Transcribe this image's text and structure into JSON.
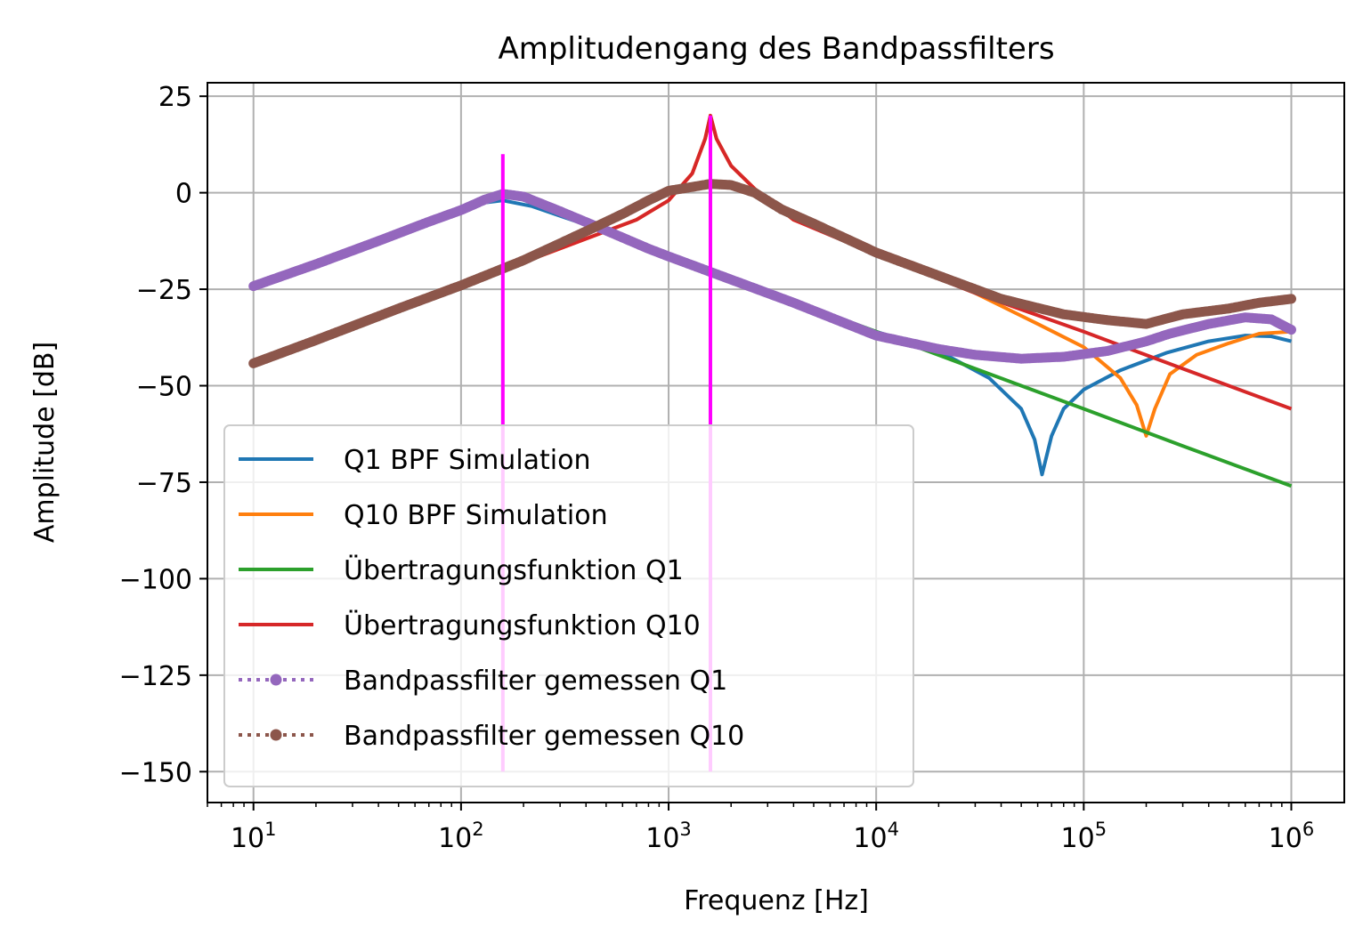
{
  "chart_data": {
    "type": "line",
    "title": "Amplitudengang des Bandpassfilters",
    "xlabel": "Frequenz [Hz]",
    "ylabel": "Amplitude [dB]",
    "x_scale": "log",
    "xlim": [
      6,
      1800000
    ],
    "ylim": [
      -158,
      28.5
    ],
    "grid": true,
    "legend_position": "lower-left",
    "x_ticks": [
      {
        "value": 10,
        "base": "10",
        "exp": "1"
      },
      {
        "value": 100,
        "base": "10",
        "exp": "2"
      },
      {
        "value": 1000,
        "base": "10",
        "exp": "3"
      },
      {
        "value": 10000,
        "base": "10",
        "exp": "4"
      },
      {
        "value": 100000,
        "base": "10",
        "exp": "5"
      },
      {
        "value": 1000000,
        "base": "10",
        "exp": "6"
      }
    ],
    "y_ticks": [
      {
        "value": 25,
        "label": "25"
      },
      {
        "value": 0,
        "label": "0"
      },
      {
        "value": -25,
        "label": "−25"
      },
      {
        "value": -50,
        "label": "−50"
      },
      {
        "value": -75,
        "label": "−75"
      },
      {
        "value": -100,
        "label": "−100"
      },
      {
        "value": -125,
        "label": "−125"
      },
      {
        "value": -150,
        "label": "−150"
      }
    ],
    "vertical_markers": [
      {
        "x": 159,
        "y_range": [
          -150,
          10
        ],
        "color": "#ff00ff"
      },
      {
        "x": 1590,
        "y_range": [
          -150,
          20
        ],
        "color": "#ff00ff"
      }
    ],
    "series": [
      {
        "name": "Q1 BPF Simulation",
        "color": "#1f77b4",
        "style": "solid",
        "points": [
          [
            10,
            -24
          ],
          [
            30,
            -14.5
          ],
          [
            80,
            -6
          ],
          [
            120,
            -2.8
          ],
          [
            159,
            -2
          ],
          [
            220,
            -3.5
          ],
          [
            400,
            -8.3
          ],
          [
            1000,
            -16.2
          ],
          [
            3000,
            -26
          ],
          [
            10000,
            -36
          ],
          [
            20000,
            -41
          ],
          [
            35000,
            -48
          ],
          [
            50000,
            -56
          ],
          [
            58000,
            -64
          ],
          [
            63000,
            -73
          ],
          [
            70000,
            -63
          ],
          [
            80000,
            -56
          ],
          [
            100000,
            -51
          ],
          [
            150000,
            -46
          ],
          [
            250000,
            -41.5
          ],
          [
            400000,
            -38.5
          ],
          [
            600000,
            -37
          ],
          [
            800000,
            -37.2
          ],
          [
            1000000,
            -38.5
          ]
        ]
      },
      {
        "name": "Q10 BPF Simulation",
        "color": "#ff7f0e",
        "style": "solid",
        "points": [
          [
            10,
            -44
          ],
          [
            50,
            -30
          ],
          [
            200,
            -18
          ],
          [
            700,
            -7
          ],
          [
            1000,
            -2
          ],
          [
            1300,
            5
          ],
          [
            1500,
            14
          ],
          [
            1590,
            20
          ],
          [
            1700,
            14
          ],
          [
            2000,
            7
          ],
          [
            2600,
            1
          ],
          [
            4000,
            -7
          ],
          [
            10000,
            -15.5
          ],
          [
            30000,
            -26
          ],
          [
            60000,
            -34
          ],
          [
            100000,
            -40
          ],
          [
            150000,
            -48
          ],
          [
            180000,
            -55
          ],
          [
            200000,
            -63
          ],
          [
            220000,
            -56
          ],
          [
            260000,
            -47
          ],
          [
            350000,
            -42
          ],
          [
            500000,
            -39
          ],
          [
            700000,
            -36.5
          ],
          [
            1000000,
            -36
          ]
        ]
      },
      {
        "name": "Übertragungsfunktion Q1",
        "color": "#2ca02c",
        "style": "solid",
        "points": [
          [
            10,
            -24
          ],
          [
            30,
            -14.5
          ],
          [
            80,
            -6
          ],
          [
            120,
            -2.5
          ],
          [
            159,
            0
          ],
          [
            220,
            -2.5
          ],
          [
            400,
            -7.9
          ],
          [
            1000,
            -16.2
          ],
          [
            3000,
            -25.6
          ],
          [
            10000,
            -36
          ],
          [
            30000,
            -45.6
          ],
          [
            100000,
            -56
          ],
          [
            300000,
            -65.6
          ],
          [
            1000000,
            -76
          ]
        ]
      },
      {
        "name": "Übertragungsfunktion Q10",
        "color": "#d62728",
        "style": "solid",
        "points": [
          [
            10,
            -44
          ],
          [
            50,
            -30
          ],
          [
            200,
            -18
          ],
          [
            700,
            -7
          ],
          [
            1000,
            -2
          ],
          [
            1300,
            5
          ],
          [
            1500,
            14
          ],
          [
            1590,
            20
          ],
          [
            1700,
            14
          ],
          [
            2000,
            7
          ],
          [
            2600,
            1
          ],
          [
            4000,
            -7
          ],
          [
            10000,
            -16
          ],
          [
            30000,
            -26
          ],
          [
            100000,
            -36
          ],
          [
            300000,
            -45.6
          ],
          [
            1000000,
            -56
          ]
        ]
      },
      {
        "name": "Bandpassfilter gemessen Q1",
        "color": "#9467bd",
        "style": "dotted-markers",
        "points": [
          [
            10,
            -24.2
          ],
          [
            20,
            -18.5
          ],
          [
            40,
            -12.5
          ],
          [
            70,
            -7.5
          ],
          [
            100,
            -4.5
          ],
          [
            130,
            -1.8
          ],
          [
            159,
            -0.3
          ],
          [
            200,
            -1
          ],
          [
            300,
            -4.8
          ],
          [
            500,
            -9.8
          ],
          [
            800,
            -14.5
          ],
          [
            1000,
            -16.5
          ],
          [
            2000,
            -22.5
          ],
          [
            4000,
            -28.5
          ],
          [
            10000,
            -37
          ],
          [
            20000,
            -40.5
          ],
          [
            30000,
            -42
          ],
          [
            50000,
            -43
          ],
          [
            80000,
            -42.5
          ],
          [
            130000,
            -41
          ],
          [
            200000,
            -38.5
          ],
          [
            260000,
            -36.5
          ],
          [
            400000,
            -34
          ],
          [
            600000,
            -32.3
          ],
          [
            800000,
            -32.8
          ],
          [
            1000000,
            -35.5
          ]
        ]
      },
      {
        "name": "Bandpassfilter gemessen Q10",
        "color": "#8c564b",
        "style": "dotted-markers",
        "points": [
          [
            10,
            -44.2
          ],
          [
            20,
            -38.2
          ],
          [
            50,
            -30
          ],
          [
            100,
            -24
          ],
          [
            200,
            -17.5
          ],
          [
            400,
            -10
          ],
          [
            600,
            -5.5
          ],
          [
            800,
            -2
          ],
          [
            1000,
            0.5
          ],
          [
            1300,
            1.5
          ],
          [
            1590,
            2.3
          ],
          [
            2000,
            2
          ],
          [
            2600,
            0
          ],
          [
            3500,
            -4.3
          ],
          [
            5000,
            -8
          ],
          [
            10000,
            -15.5
          ],
          [
            20000,
            -21.5
          ],
          [
            40000,
            -27.5
          ],
          [
            80000,
            -31.5
          ],
          [
            130000,
            -33
          ],
          [
            200000,
            -34
          ],
          [
            300000,
            -31.5
          ],
          [
            500000,
            -30
          ],
          [
            700000,
            -28.5
          ],
          [
            1000000,
            -27.5
          ]
        ]
      }
    ]
  }
}
